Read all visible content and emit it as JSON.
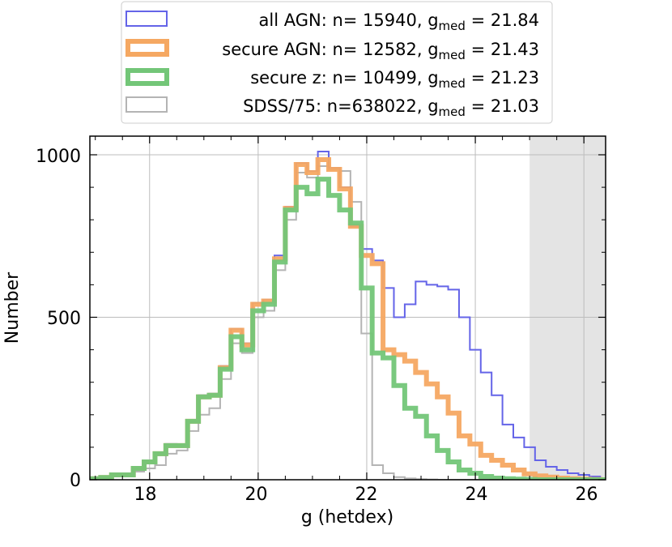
{
  "chart_data": {
    "type": "histogram",
    "xlabel": "g (hetdex)",
    "ylabel": "Number",
    "xlim": [
      16.9,
      26.4
    ],
    "ylim": [
      0,
      1000
    ],
    "xticks": [
      "18",
      "20",
      "22",
      "24",
      "26"
    ],
    "yticks": [
      "0",
      "500",
      "1000"
    ],
    "grid": true,
    "legend_position": "top-center, above plot",
    "bin_edges": [
      16.9,
      17.1,
      17.3,
      17.5,
      17.7,
      17.9,
      18.1,
      18.3,
      18.5,
      18.7,
      18.9,
      19.1,
      19.3,
      19.5,
      19.7,
      19.9,
      20.1,
      20.3,
      20.5,
      20.7,
      20.9,
      21.1,
      21.3,
      21.5,
      21.7,
      21.9,
      22.1,
      22.3,
      22.5,
      22.7,
      22.9,
      23.1,
      23.3,
      23.5,
      23.7,
      23.9,
      24.1,
      24.3,
      24.5,
      24.7,
      24.9,
      25.1,
      25.3,
      25.5,
      25.7,
      25.9,
      26.1,
      26.3,
      26.5
    ],
    "shaded_region": {
      "x": [
        25.0,
        26.4
      ],
      "color": "#e4e4e4"
    },
    "series": [
      {
        "name": "all AGN",
        "legend_text": "all AGN: n=  15940, ",
        "g_med": "21.84",
        "color": "#6464e8",
        "linewidth": 2,
        "values": [
          5,
          8,
          18,
          15,
          35,
          55,
          80,
          110,
          108,
          180,
          260,
          265,
          350,
          465,
          420,
          545,
          555,
          690,
          840,
          975,
          950,
          1010,
          960,
          900,
          780,
          710,
          675,
          590,
          500,
          540,
          610,
          600,
          595,
          585,
          500,
          400,
          330,
          260,
          170,
          130,
          100,
          60,
          40,
          30,
          20,
          15,
          10,
          5
        ]
      },
      {
        "name": "secure AGN",
        "legend_text": "secure AGN: n=   12582, ",
        "g_med": "21.43",
        "color": "#f5a862",
        "linewidth": 6,
        "values": [
          3,
          7,
          15,
          15,
          35,
          55,
          80,
          105,
          105,
          180,
          255,
          260,
          345,
          460,
          415,
          540,
          550,
          680,
          835,
          970,
          945,
          985,
          955,
          895,
          780,
          690,
          665,
          400,
          385,
          365,
          330,
          295,
          255,
          205,
          135,
          110,
          75,
          60,
          45,
          30,
          18,
          12,
          8,
          5,
          3,
          2,
          1,
          0
        ]
      },
      {
        "name": "secure z",
        "legend_text": "secure z: n=   10499, ",
        "g_med": "21.23",
        "color": "#73c678",
        "linewidth": 6,
        "values": [
          3,
          7,
          15,
          15,
          35,
          55,
          80,
          105,
          105,
          180,
          255,
          260,
          340,
          440,
          400,
          520,
          540,
          670,
          830,
          900,
          880,
          925,
          875,
          830,
          790,
          590,
          390,
          375,
          290,
          220,
          195,
          135,
          90,
          55,
          30,
          20,
          10,
          5,
          3,
          2,
          1,
          0,
          0,
          0,
          0,
          0,
          0,
          0
        ]
      },
      {
        "name": "SDSS/75",
        "legend_text": "SDSS/75: n=638022, ",
        "g_med": "21.03",
        "color": "#b4b4b4",
        "linewidth": 2,
        "values": [
          2,
          5,
          10,
          10,
          25,
          35,
          45,
          80,
          90,
          150,
          200,
          220,
          310,
          420,
          390,
          500,
          520,
          645,
          800,
          945,
          930,
          965,
          955,
          950,
          855,
          450,
          45,
          20,
          8,
          4,
          2,
          1,
          0,
          0,
          0,
          0,
          0,
          0,
          0,
          0,
          0,
          0,
          0,
          0,
          0,
          0,
          0,
          0
        ]
      }
    ]
  }
}
